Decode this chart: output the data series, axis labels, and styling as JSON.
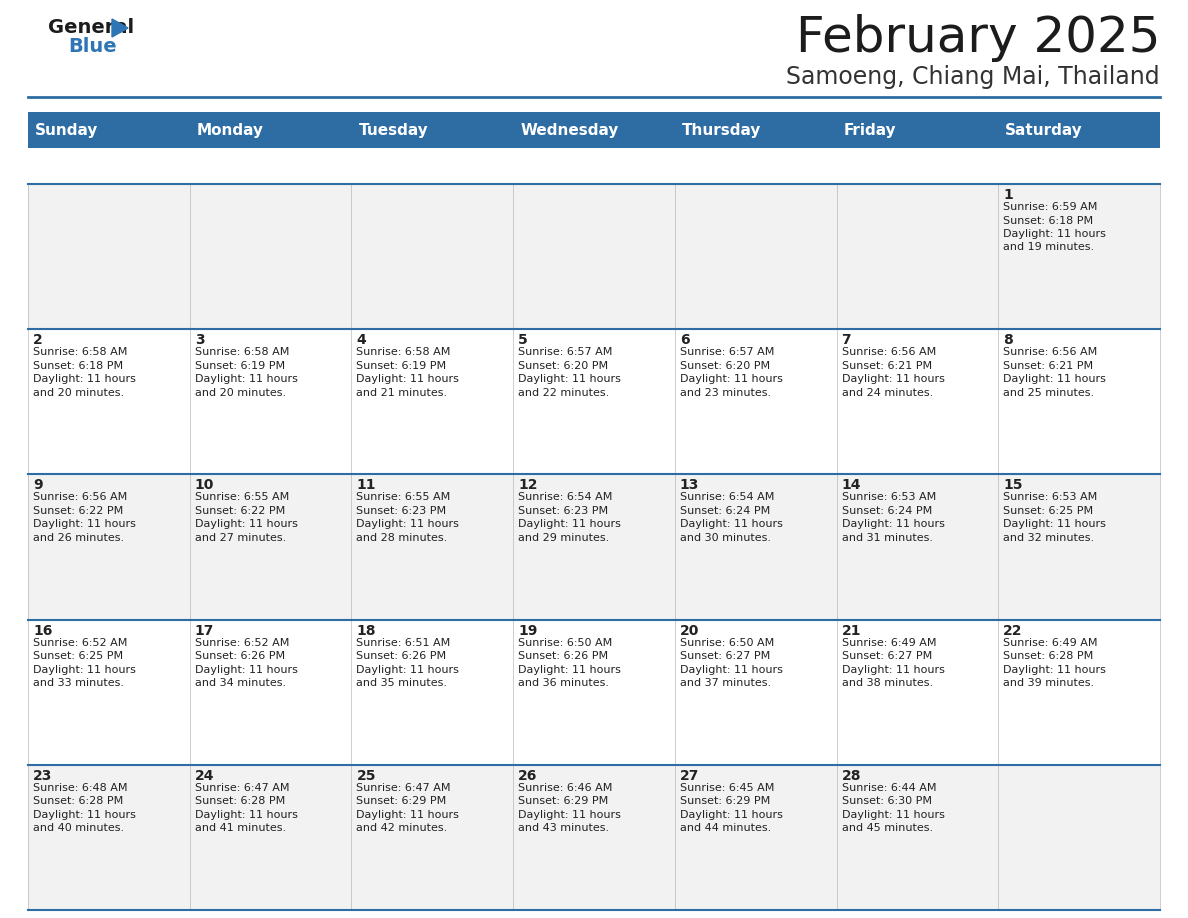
{
  "title": "February 2025",
  "subtitle": "Samoeng, Chiang Mai, Thailand",
  "header_bg": "#2E6DA4",
  "header_text_color": "#FFFFFF",
  "weekdays": [
    "Sunday",
    "Monday",
    "Tuesday",
    "Wednesday",
    "Thursday",
    "Friday",
    "Saturday"
  ],
  "row_bg_odd": "#F2F2F2",
  "row_bg_even": "#FFFFFF",
  "cell_border_color": "#2E6DA4",
  "days": [
    {
      "day": 1,
      "col": 6,
      "row": 0,
      "sunrise": "6:59 AM",
      "sunset": "6:18 PM",
      "daylight": "11 hours and 19 minutes."
    },
    {
      "day": 2,
      "col": 0,
      "row": 1,
      "sunrise": "6:58 AM",
      "sunset": "6:18 PM",
      "daylight": "11 hours and 20 minutes."
    },
    {
      "day": 3,
      "col": 1,
      "row": 1,
      "sunrise": "6:58 AM",
      "sunset": "6:19 PM",
      "daylight": "11 hours and 20 minutes."
    },
    {
      "day": 4,
      "col": 2,
      "row": 1,
      "sunrise": "6:58 AM",
      "sunset": "6:19 PM",
      "daylight": "11 hours and 21 minutes."
    },
    {
      "day": 5,
      "col": 3,
      "row": 1,
      "sunrise": "6:57 AM",
      "sunset": "6:20 PM",
      "daylight": "11 hours and 22 minutes."
    },
    {
      "day": 6,
      "col": 4,
      "row": 1,
      "sunrise": "6:57 AM",
      "sunset": "6:20 PM",
      "daylight": "11 hours and 23 minutes."
    },
    {
      "day": 7,
      "col": 5,
      "row": 1,
      "sunrise": "6:56 AM",
      "sunset": "6:21 PM",
      "daylight": "11 hours and 24 minutes."
    },
    {
      "day": 8,
      "col": 6,
      "row": 1,
      "sunrise": "6:56 AM",
      "sunset": "6:21 PM",
      "daylight": "11 hours and 25 minutes."
    },
    {
      "day": 9,
      "col": 0,
      "row": 2,
      "sunrise": "6:56 AM",
      "sunset": "6:22 PM",
      "daylight": "11 hours and 26 minutes."
    },
    {
      "day": 10,
      "col": 1,
      "row": 2,
      "sunrise": "6:55 AM",
      "sunset": "6:22 PM",
      "daylight": "11 hours and 27 minutes."
    },
    {
      "day": 11,
      "col": 2,
      "row": 2,
      "sunrise": "6:55 AM",
      "sunset": "6:23 PM",
      "daylight": "11 hours and 28 minutes."
    },
    {
      "day": 12,
      "col": 3,
      "row": 2,
      "sunrise": "6:54 AM",
      "sunset": "6:23 PM",
      "daylight": "11 hours and 29 minutes."
    },
    {
      "day": 13,
      "col": 4,
      "row": 2,
      "sunrise": "6:54 AM",
      "sunset": "6:24 PM",
      "daylight": "11 hours and 30 minutes."
    },
    {
      "day": 14,
      "col": 5,
      "row": 2,
      "sunrise": "6:53 AM",
      "sunset": "6:24 PM",
      "daylight": "11 hours and 31 minutes."
    },
    {
      "day": 15,
      "col": 6,
      "row": 2,
      "sunrise": "6:53 AM",
      "sunset": "6:25 PM",
      "daylight": "11 hours and 32 minutes."
    },
    {
      "day": 16,
      "col": 0,
      "row": 3,
      "sunrise": "6:52 AM",
      "sunset": "6:25 PM",
      "daylight": "11 hours and 33 minutes."
    },
    {
      "day": 17,
      "col": 1,
      "row": 3,
      "sunrise": "6:52 AM",
      "sunset": "6:26 PM",
      "daylight": "11 hours and 34 minutes."
    },
    {
      "day": 18,
      "col": 2,
      "row": 3,
      "sunrise": "6:51 AM",
      "sunset": "6:26 PM",
      "daylight": "11 hours and 35 minutes."
    },
    {
      "day": 19,
      "col": 3,
      "row": 3,
      "sunrise": "6:50 AM",
      "sunset": "6:26 PM",
      "daylight": "11 hours and 36 minutes."
    },
    {
      "day": 20,
      "col": 4,
      "row": 3,
      "sunrise": "6:50 AM",
      "sunset": "6:27 PM",
      "daylight": "11 hours and 37 minutes."
    },
    {
      "day": 21,
      "col": 5,
      "row": 3,
      "sunrise": "6:49 AM",
      "sunset": "6:27 PM",
      "daylight": "11 hours and 38 minutes."
    },
    {
      "day": 22,
      "col": 6,
      "row": 3,
      "sunrise": "6:49 AM",
      "sunset": "6:28 PM",
      "daylight": "11 hours and 39 minutes."
    },
    {
      "day": 23,
      "col": 0,
      "row": 4,
      "sunrise": "6:48 AM",
      "sunset": "6:28 PM",
      "daylight": "11 hours and 40 minutes."
    },
    {
      "day": 24,
      "col": 1,
      "row": 4,
      "sunrise": "6:47 AM",
      "sunset": "6:28 PM",
      "daylight": "11 hours and 41 minutes."
    },
    {
      "day": 25,
      "col": 2,
      "row": 4,
      "sunrise": "6:47 AM",
      "sunset": "6:29 PM",
      "daylight": "11 hours and 42 minutes."
    },
    {
      "day": 26,
      "col": 3,
      "row": 4,
      "sunrise": "6:46 AM",
      "sunset": "6:29 PM",
      "daylight": "11 hours and 43 minutes."
    },
    {
      "day": 27,
      "col": 4,
      "row": 4,
      "sunrise": "6:45 AM",
      "sunset": "6:29 PM",
      "daylight": "11 hours and 44 minutes."
    },
    {
      "day": 28,
      "col": 5,
      "row": 4,
      "sunrise": "6:44 AM",
      "sunset": "6:30 PM",
      "daylight": "11 hours and 45 minutes."
    }
  ],
  "bg_color": "#FFFFFF",
  "title_fontsize": 36,
  "subtitle_fontsize": 17,
  "header_fontsize": 11,
  "day_num_fontsize": 10,
  "info_fontsize": 8
}
